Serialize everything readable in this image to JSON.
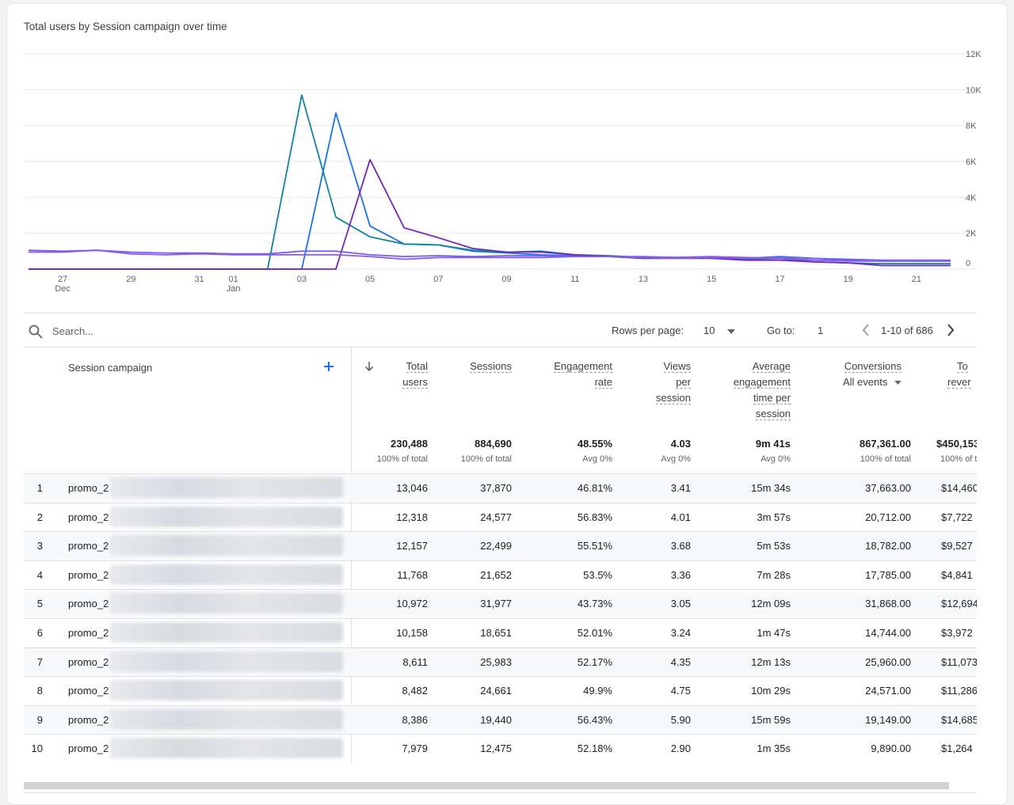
{
  "card": {
    "title": "Total users by Session campaign over time"
  },
  "chart_data": {
    "type": "line",
    "title": "Total users by Session campaign over time",
    "x": [
      "Dec 26",
      "Dec 27",
      "Dec 28",
      "Dec 29",
      "Dec 30",
      "Dec 31",
      "Jan 01",
      "Jan 02",
      "Jan 03",
      "Jan 04",
      "Jan 05",
      "Jan 06",
      "Jan 07",
      "Jan 08",
      "Jan 09",
      "Jan 10",
      "Jan 11",
      "Jan 12",
      "Jan 13",
      "Jan 14",
      "Jan 15",
      "Jan 16",
      "Jan 17",
      "Jan 18",
      "Jan 19",
      "Jan 20",
      "Jan 21",
      "Jan 22"
    ],
    "x_tick_labels": [
      {
        "label": "27",
        "sub": "Dec",
        "index": 1
      },
      {
        "label": "29",
        "sub": "",
        "index": 3
      },
      {
        "label": "31",
        "sub": "",
        "index": 5
      },
      {
        "label": "01",
        "sub": "Jan",
        "index": 6
      },
      {
        "label": "03",
        "sub": "",
        "index": 8
      },
      {
        "label": "05",
        "sub": "",
        "index": 10
      },
      {
        "label": "07",
        "sub": "",
        "index": 12
      },
      {
        "label": "09",
        "sub": "",
        "index": 14
      },
      {
        "label": "11",
        "sub": "",
        "index": 16
      },
      {
        "label": "13",
        "sub": "",
        "index": 18
      },
      {
        "label": "15",
        "sub": "",
        "index": 20
      },
      {
        "label": "17",
        "sub": "",
        "index": 22
      },
      {
        "label": "19",
        "sub": "",
        "index": 24
      },
      {
        "label": "21",
        "sub": "",
        "index": 26
      }
    ],
    "y_ticks": [
      0,
      2000,
      4000,
      6000,
      8000,
      10000,
      12000
    ],
    "y_tick_labels": [
      "0",
      "2K",
      "4K",
      "6K",
      "8K",
      "10K",
      "12K"
    ],
    "ylim": [
      0,
      12000
    ],
    "y_axis_side": "right",
    "grid": true,
    "series": [
      {
        "color": "#1a73e8",
        "values": [
          0,
          0,
          0,
          0,
          0,
          0,
          0,
          0,
          0,
          8700,
          2400,
          1400,
          1350,
          1000,
          900,
          800,
          750,
          700,
          600,
          650,
          650,
          600,
          700,
          600,
          500,
          450,
          450,
          450
        ]
      },
      {
        "color": "#12839e",
        "values": [
          0,
          0,
          0,
          0,
          0,
          0,
          0,
          0,
          9700,
          2900,
          1800,
          1400,
          1350,
          1050,
          950,
          1000,
          800,
          750,
          650,
          650,
          700,
          550,
          600,
          400,
          350,
          300,
          300,
          300
        ]
      },
      {
        "color": "#7627bb",
        "values": [
          0,
          0,
          0,
          0,
          0,
          0,
          0,
          0,
          0,
          0,
          6100,
          2300,
          1750,
          1150,
          950,
          950,
          800,
          700,
          600,
          600,
          600,
          500,
          500,
          400,
          350,
          200,
          200,
          200
        ]
      },
      {
        "color": "#6f63f6",
        "values": [
          1050,
          1000,
          1050,
          950,
          900,
          900,
          850,
          850,
          1000,
          1000,
          800,
          700,
          750,
          700,
          750,
          750,
          700,
          700,
          650,
          600,
          650,
          600,
          650,
          600,
          550,
          500,
          500,
          500
        ]
      },
      {
        "color": "#8e58e8",
        "values": [
          950,
          950,
          1050,
          850,
          800,
          850,
          800,
          800,
          800,
          800,
          700,
          550,
          650,
          650,
          650,
          650,
          700,
          700,
          700,
          650,
          700,
          650,
          600,
          500,
          450,
          450,
          450,
          450
        ]
      }
    ]
  },
  "toolbar": {
    "search_placeholder": "Search...",
    "rows_per_page_label": "Rows per page:",
    "rows_per_page_value": "10",
    "goto_label": "Go to:",
    "goto_value": "1",
    "range": "1-10 of 686"
  },
  "table": {
    "dim_header": "Session campaign",
    "headers": {
      "total_users": [
        "Total",
        "users"
      ],
      "sessions": [
        "Sessions"
      ],
      "engagement_rate": [
        "Engagement",
        "rate"
      ],
      "views_per_session": [
        "Views",
        "per",
        "session"
      ],
      "avg_engagement": [
        "Average",
        "engagement",
        "time per",
        "session"
      ],
      "conversions": [
        "Conversions"
      ],
      "conversions_sub": "All events",
      "revenue": [
        "To",
        "rever"
      ]
    },
    "totals": {
      "total_users": "230,488",
      "total_users_sub": "100% of total",
      "sessions": "884,690",
      "sessions_sub": "100% of total",
      "engagement_rate": "48.55%",
      "engagement_rate_sub": "Avg 0%",
      "views_per_session": "4.03",
      "views_per_session_sub": "Avg 0%",
      "avg_engagement": "9m 41s",
      "avg_engagement_sub": "Avg 0%",
      "conversions": "867,361.00",
      "conversions_sub": "100% of total",
      "revenue": "$450,153",
      "revenue_sub": "100% of t"
    },
    "rows": [
      {
        "n": "1",
        "campaign": "promo_2",
        "users": "13,046",
        "sessions": "37,870",
        "eng": "46.81%",
        "views": "3.41",
        "avg": "15m 34s",
        "conv": "37,663.00",
        "rev": "$14,460"
      },
      {
        "n": "2",
        "campaign": "promo_2",
        "users": "12,318",
        "sessions": "24,577",
        "eng": "56.83%",
        "views": "4.01",
        "avg": "3m 57s",
        "conv": "20,712.00",
        "rev": "$7,722"
      },
      {
        "n": "3",
        "campaign": "promo_2",
        "users": "12,157",
        "sessions": "22,499",
        "eng": "55.51%",
        "views": "3.68",
        "avg": "5m 53s",
        "conv": "18,782.00",
        "rev": "$9,527"
      },
      {
        "n": "4",
        "campaign": "promo_2",
        "users": "11,768",
        "sessions": "21,652",
        "eng": "53.5%",
        "views": "3.36",
        "avg": "7m 28s",
        "conv": "17,785.00",
        "rev": "$4,841"
      },
      {
        "n": "5",
        "campaign": "promo_2",
        "users": "10,972",
        "sessions": "31,977",
        "eng": "43.73%",
        "views": "3.05",
        "avg": "12m 09s",
        "conv": "31,868.00",
        "rev": "$12,694"
      },
      {
        "n": "6",
        "campaign": "promo_2",
        "users": "10,158",
        "sessions": "18,651",
        "eng": "52.01%",
        "views": "3.24",
        "avg": "1m 47s",
        "conv": "14,744.00",
        "rev": "$3,972"
      },
      {
        "n": "7",
        "campaign": "promo_2",
        "users": "8,611",
        "sessions": "25,983",
        "eng": "52.17%",
        "views": "4.35",
        "avg": "12m 13s",
        "conv": "25,960.00",
        "rev": "$11,073"
      },
      {
        "n": "8",
        "campaign": "promo_2",
        "users": "8,482",
        "sessions": "24,661",
        "eng": "49.9%",
        "views": "4.75",
        "avg": "10m 29s",
        "conv": "24,571.00",
        "rev": "$11,286"
      },
      {
        "n": "9",
        "campaign": "promo_2",
        "users": "8,386",
        "sessions": "19,440",
        "eng": "56.43%",
        "views": "5.90",
        "avg": "15m 59s",
        "conv": "19,149.00",
        "rev": "$14,685"
      },
      {
        "n": "10",
        "campaign": "promo_2",
        "users": "7,979",
        "sessions": "12,475",
        "eng": "52.18%",
        "views": "2.90",
        "avg": "1m 35s",
        "conv": "9,890.00",
        "rev": "$1,264"
      }
    ]
  }
}
